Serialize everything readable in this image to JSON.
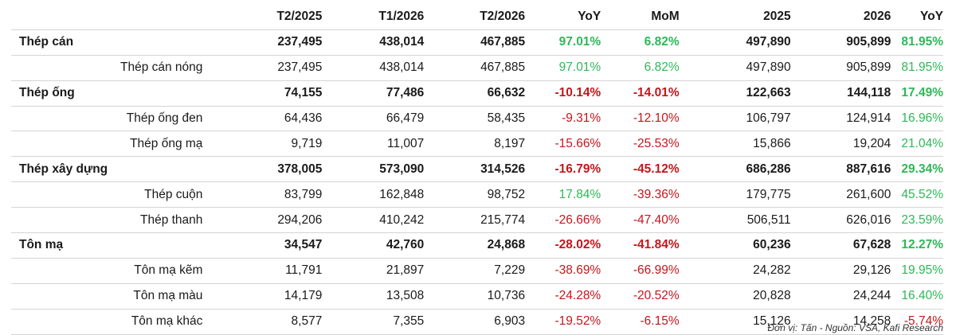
{
  "headers": [
    "",
    "T2/2025",
    "T1/2026",
    "T2/2026",
    "YoY",
    "MoM",
    "2025",
    "2026",
    "YoY"
  ],
  "rows": [
    {
      "type": "major",
      "name": "Thép cán",
      "v": [
        "237,495",
        "438,014",
        "467,885",
        "97.01%",
        "6.82%",
        "497,890",
        "905,899",
        "81.95%"
      ],
      "sign": [
        "",
        "",
        "",
        "pos",
        "pos",
        "",
        "",
        "pos"
      ]
    },
    {
      "type": "minor",
      "name": "Thép cán nóng",
      "v": [
        "237,495",
        "438,014",
        "467,885",
        "97.01%",
        "6.82%",
        "497,890",
        "905,899",
        "81.95%"
      ],
      "sign": [
        "",
        "",
        "",
        "pos",
        "pos",
        "",
        "",
        "pos"
      ]
    },
    {
      "type": "major",
      "name": "Thép ống",
      "v": [
        "74,155",
        "77,486",
        "66,632",
        "-10.14%",
        "-14.01%",
        "122,663",
        "144,118",
        "17.49%"
      ],
      "sign": [
        "",
        "",
        "",
        "neg",
        "neg",
        "",
        "",
        "pos"
      ]
    },
    {
      "type": "minor",
      "name": "Thép ống đen",
      "v": [
        "64,436",
        "66,479",
        "58,435",
        "-9.31%",
        "-12.10%",
        "106,797",
        "124,914",
        "16.96%"
      ],
      "sign": [
        "",
        "",
        "",
        "neg",
        "neg",
        "",
        "",
        "pos"
      ]
    },
    {
      "type": "minor",
      "name": "Thép ống mạ",
      "v": [
        "9,719",
        "11,007",
        "8,197",
        "-15.66%",
        "-25.53%",
        "15,866",
        "19,204",
        "21.04%"
      ],
      "sign": [
        "",
        "",
        "",
        "neg",
        "neg",
        "",
        "",
        "pos"
      ]
    },
    {
      "type": "major",
      "name": "Thép xây dựng",
      "v": [
        "378,005",
        "573,090",
        "314,526",
        "-16.79%",
        "-45.12%",
        "686,286",
        "887,616",
        "29.34%"
      ],
      "sign": [
        "",
        "",
        "",
        "neg",
        "neg",
        "",
        "",
        "pos"
      ]
    },
    {
      "type": "minor",
      "name": "Thép cuộn",
      "v": [
        "83,799",
        "162,848",
        "98,752",
        "17.84%",
        "-39.36%",
        "179,775",
        "261,600",
        "45.52%"
      ],
      "sign": [
        "",
        "",
        "",
        "pos",
        "neg",
        "",
        "",
        "pos"
      ]
    },
    {
      "type": "minor",
      "name": "Thép thanh",
      "v": [
        "294,206",
        "410,242",
        "215,774",
        "-26.66%",
        "-47.40%",
        "506,511",
        "626,016",
        "23.59%"
      ],
      "sign": [
        "",
        "",
        "",
        "neg",
        "neg",
        "",
        "",
        "pos"
      ]
    },
    {
      "type": "major",
      "name": "Tôn mạ",
      "v": [
        "34,547",
        "42,760",
        "24,868",
        "-28.02%",
        "-41.84%",
        "60,236",
        "67,628",
        "12.27%"
      ],
      "sign": [
        "",
        "",
        "",
        "neg",
        "neg",
        "",
        "",
        "pos"
      ]
    },
    {
      "type": "minor",
      "name": "Tôn mạ kẽm",
      "v": [
        "11,791",
        "21,897",
        "7,229",
        "-38.69%",
        "-66.99%",
        "24,282",
        "29,126",
        "19.95%"
      ],
      "sign": [
        "",
        "",
        "",
        "neg",
        "neg",
        "",
        "",
        "pos"
      ]
    },
    {
      "type": "minor",
      "name": "Tôn mạ màu",
      "v": [
        "14,179",
        "13,508",
        "10,736",
        "-24.28%",
        "-20.52%",
        "20,828",
        "24,244",
        "16.40%"
      ],
      "sign": [
        "",
        "",
        "",
        "neg",
        "neg",
        "",
        "",
        "pos"
      ]
    },
    {
      "type": "minor",
      "name": "Tôn mạ khác",
      "v": [
        "8,577",
        "7,355",
        "6,903",
        "-19.52%",
        "-6.15%",
        "15,126",
        "14,258",
        "-5.74%"
      ],
      "sign": [
        "",
        "",
        "",
        "neg",
        "neg",
        "",
        "",
        "neg"
      ]
    }
  ],
  "footnote": "Đơn vị: Tấn - Nguồn: VSA, Kafi Research",
  "colors": {
    "positive": "#2eb857",
    "negative": "#c4161c"
  }
}
